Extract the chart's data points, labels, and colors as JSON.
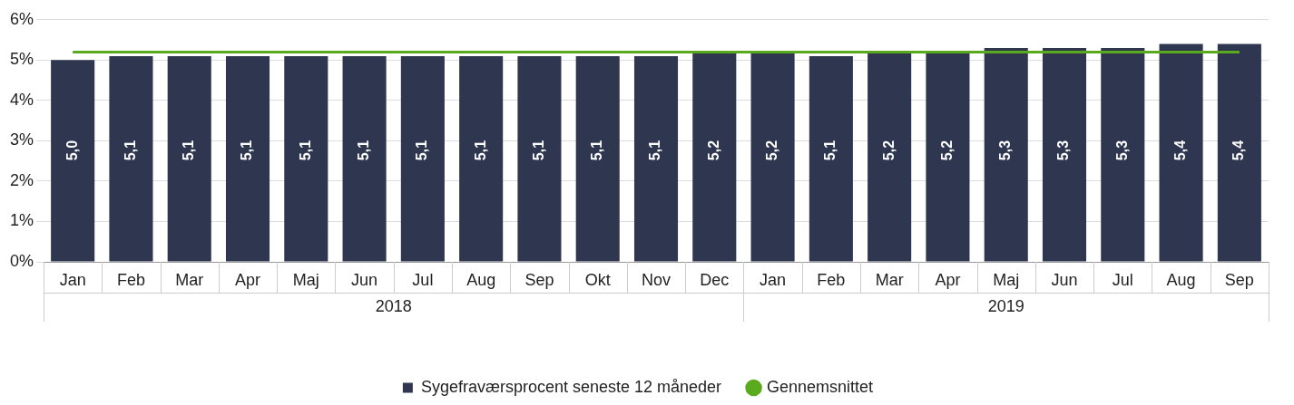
{
  "chart_data": {
    "type": "bar",
    "categories": [
      "Jan",
      "Feb",
      "Mar",
      "Apr",
      "Maj",
      "Jun",
      "Jul",
      "Aug",
      "Sep",
      "Okt",
      "Nov",
      "Dec",
      "Jan",
      "Feb",
      "Mar",
      "Apr",
      "Maj",
      "Jun",
      "Jul",
      "Aug",
      "Sep"
    ],
    "series": [
      {
        "name": "Sygefraværsprocent seneste 12 måneder",
        "color": "#2e3650",
        "values": [
          5.0,
          5.1,
          5.1,
          5.1,
          5.1,
          5.1,
          5.1,
          5.1,
          5.1,
          5.1,
          5.1,
          5.2,
          5.2,
          5.1,
          5.2,
          5.2,
          5.3,
          5.3,
          5.3,
          5.4,
          5.4
        ],
        "value_labels": [
          "5,0",
          "5,1",
          "5,1",
          "5,1",
          "5,1",
          "5,1",
          "5,1",
          "5,1",
          "5,1",
          "5,1",
          "5,1",
          "5,2",
          "5,2",
          "5,1",
          "5,2",
          "5,2",
          "5,3",
          "5,3",
          "5,3",
          "5,4",
          "5,4"
        ]
      },
      {
        "name": "Gennemsnittet",
        "type": "line",
        "color": "#5aaa1e",
        "values": [
          5.2,
          5.2,
          5.2,
          5.2,
          5.2,
          5.2,
          5.2,
          5.2,
          5.2,
          5.2,
          5.2,
          5.2,
          5.2,
          5.2,
          5.2,
          5.2,
          5.2,
          5.2,
          5.2,
          5.2,
          5.2
        ]
      }
    ],
    "annotations": [
      "2018",
      "2019"
    ],
    "ylim": [
      0,
      6
    ],
    "yticks": [
      {
        "value": 0,
        "label": "0%"
      },
      {
        "value": 1,
        "label": "1%"
      },
      {
        "value": 2,
        "label": "2%"
      },
      {
        "value": 3,
        "label": "3%"
      },
      {
        "value": 4,
        "label": "4%"
      },
      {
        "value": 5,
        "label": "5%"
      },
      {
        "value": 6,
        "label": "6%"
      }
    ],
    "grid": "y",
    "legend": "bottom",
    "marker": "none"
  }
}
